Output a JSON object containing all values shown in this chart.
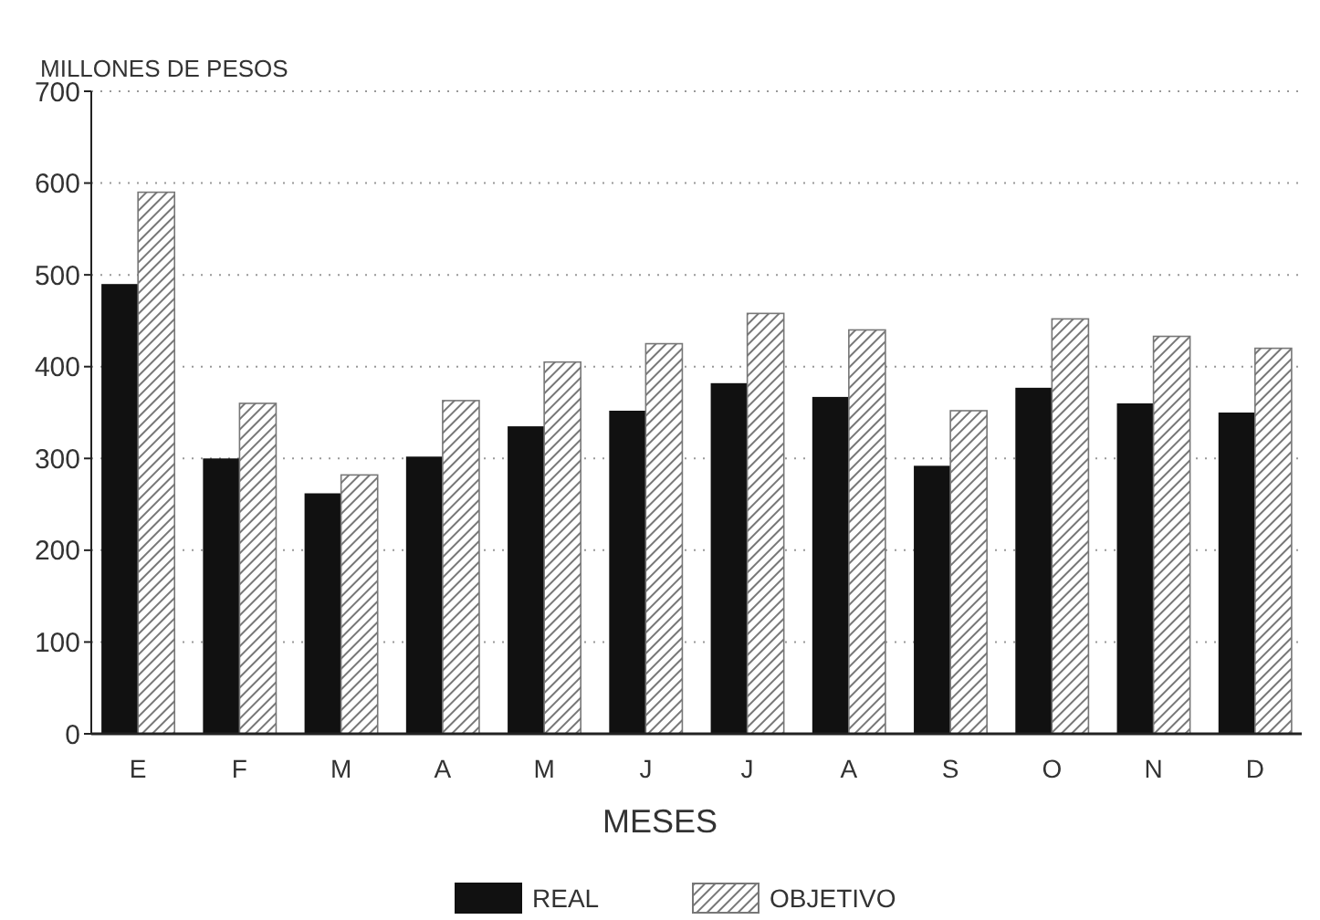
{
  "chart_data": {
    "type": "bar",
    "ylabel": "MILLONES DE PESOS",
    "xlabel": "MESES",
    "categories": [
      "E",
      "F",
      "M",
      "A",
      "M",
      "J",
      "J",
      "A",
      "S",
      "O",
      "N",
      "D"
    ],
    "series": [
      {
        "name": "REAL",
        "color": "#111111",
        "values": [
          490,
          300,
          262,
          302,
          335,
          352,
          382,
          367,
          292,
          377,
          360,
          350
        ]
      },
      {
        "name": "OBJETIVO",
        "color": "#777777",
        "values": [
          590,
          360,
          282,
          363,
          405,
          425,
          458,
          440,
          352,
          452,
          433,
          420
        ]
      }
    ],
    "ylim": [
      0,
      700
    ],
    "yticks": [
      0,
      100,
      200,
      300,
      400,
      500,
      600,
      700
    ],
    "grid": "y",
    "legend": "bottom"
  }
}
